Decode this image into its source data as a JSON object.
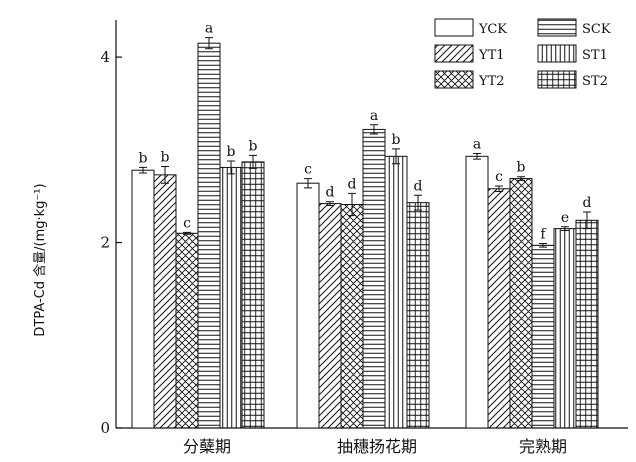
{
  "chart_data": {
    "type": "bar",
    "title": "",
    "xlabel": "",
    "ylabel": "DTPA-Cd 含量/(mg·kg⁻¹)",
    "ylim": [
      0,
      4.4
    ],
    "yticks": [
      0,
      2,
      4
    ],
    "categories": [
      "分蘖期",
      "抽穗扬花期",
      "完熟期"
    ],
    "series": [
      {
        "name": "YCK",
        "pattern": "none",
        "values": [
          2.78,
          2.64,
          2.93
        ],
        "errors": [
          0.03,
          0.05,
          0.03
        ],
        "letters": [
          "b",
          "c",
          "a"
        ]
      },
      {
        "name": "YT1",
        "pattern": "diagonal",
        "values": [
          2.73,
          2.42,
          2.58
        ],
        "errors": [
          0.09,
          0.02,
          0.03
        ],
        "letters": [
          "b",
          "d",
          "c"
        ]
      },
      {
        "name": "YT2",
        "pattern": "crosshatch",
        "values": [
          2.1,
          2.41,
          2.69
        ],
        "errors": [
          0.01,
          0.12,
          0.02
        ],
        "letters": [
          "c",
          "d",
          "b"
        ]
      },
      {
        "name": "SCK",
        "pattern": "horizontal",
        "values": [
          4.15,
          3.22,
          1.97
        ],
        "errors": [
          0.06,
          0.05,
          0.02
        ],
        "letters": [
          "a",
          "a",
          "f"
        ]
      },
      {
        "name": "ST1",
        "pattern": "vertical",
        "values": [
          2.81,
          2.93,
          2.15
        ],
        "errors": [
          0.07,
          0.08,
          0.02
        ],
        "letters": [
          "b",
          "b",
          "e"
        ]
      },
      {
        "name": "ST2",
        "pattern": "grid",
        "values": [
          2.87,
          2.43,
          2.24
        ],
        "errors": [
          0.07,
          0.08,
          0.09
        ],
        "letters": [
          "b",
          "d",
          "d"
        ]
      }
    ],
    "legend_position": "top-right",
    "grid": false
  }
}
